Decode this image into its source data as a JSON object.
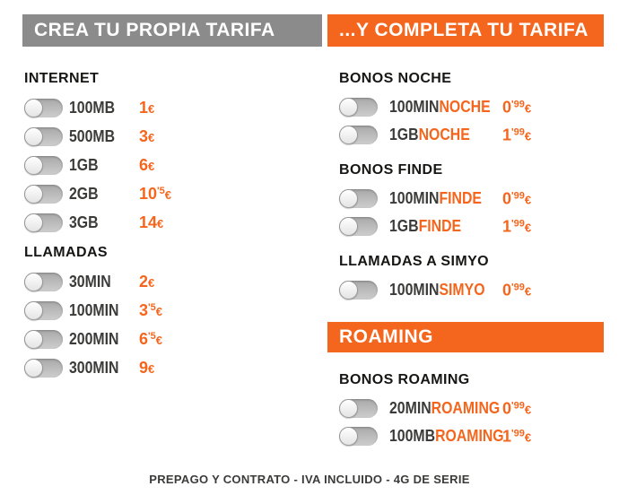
{
  "euro": "€",
  "left_column": {
    "header": "CREA TU PROPIA TARIFA",
    "sections": [
      {
        "title": "INTERNET",
        "rows": [
          {
            "label": "100MB",
            "price": "1",
            "sup": ""
          },
          {
            "label": "500MB",
            "price": "3",
            "sup": ""
          },
          {
            "label": "1GB",
            "price": "6",
            "sup": ""
          },
          {
            "label": "2GB",
            "price": "10",
            "sup": "'5"
          },
          {
            "label": "3GB",
            "price": "14",
            "sup": ""
          }
        ]
      },
      {
        "title": "LLAMADAS",
        "rows": [
          {
            "label": "30MIN",
            "price": "2",
            "sup": ""
          },
          {
            "label": "100MIN",
            "price": "3",
            "sup": "'5"
          },
          {
            "label": "200MIN",
            "price": "6",
            "sup": "'5"
          },
          {
            "label": "300MIN",
            "price": "9",
            "sup": ""
          }
        ]
      }
    ]
  },
  "right_column": {
    "header": "...Y COMPLETA TU TARIFA",
    "sections": [
      {
        "title": "BONOS NOCHE",
        "rows": [
          {
            "label": "100MIN",
            "label_accent": "NOCHE",
            "price": "0",
            "sup": "'99"
          },
          {
            "label": "1GB",
            "label_accent": "NOCHE",
            "price": "1",
            "sup": "'99"
          }
        ]
      },
      {
        "title": "BONOS FINDE",
        "rows": [
          {
            "label": "100MIN",
            "label_accent": "FINDE",
            "price": "0",
            "sup": "'99"
          },
          {
            "label": "1GB",
            "label_accent": "FINDE",
            "price": "1",
            "sup": "'99"
          }
        ]
      },
      {
        "title": "LLAMADAS A SIMYO",
        "rows": [
          {
            "label": "100MIN",
            "label_accent": "SIMYO",
            "price": "0",
            "sup": "'99"
          }
        ]
      }
    ],
    "roaming_header": "ROAMING",
    "roaming_section": {
      "title": "BONOS ROAMING",
      "rows": [
        {
          "label": "20MIN",
          "label_accent": "ROAMING",
          "price": "0",
          "sup": "'99"
        },
        {
          "label": "100MB",
          "label_accent": "ROAMING",
          "price": "1",
          "sup": "'99"
        }
      ]
    }
  },
  "footer": "PREPAGO Y CONTRATO - IVA INCLUIDO - 4G DE SERIE",
  "colors": {
    "orange": "#f4661d",
    "gray_header": "#8b8b8b",
    "dark_text": "#3b3b3a",
    "toggle_track": "#bdbdbd",
    "toggle_knob": "#f4f4f4"
  }
}
